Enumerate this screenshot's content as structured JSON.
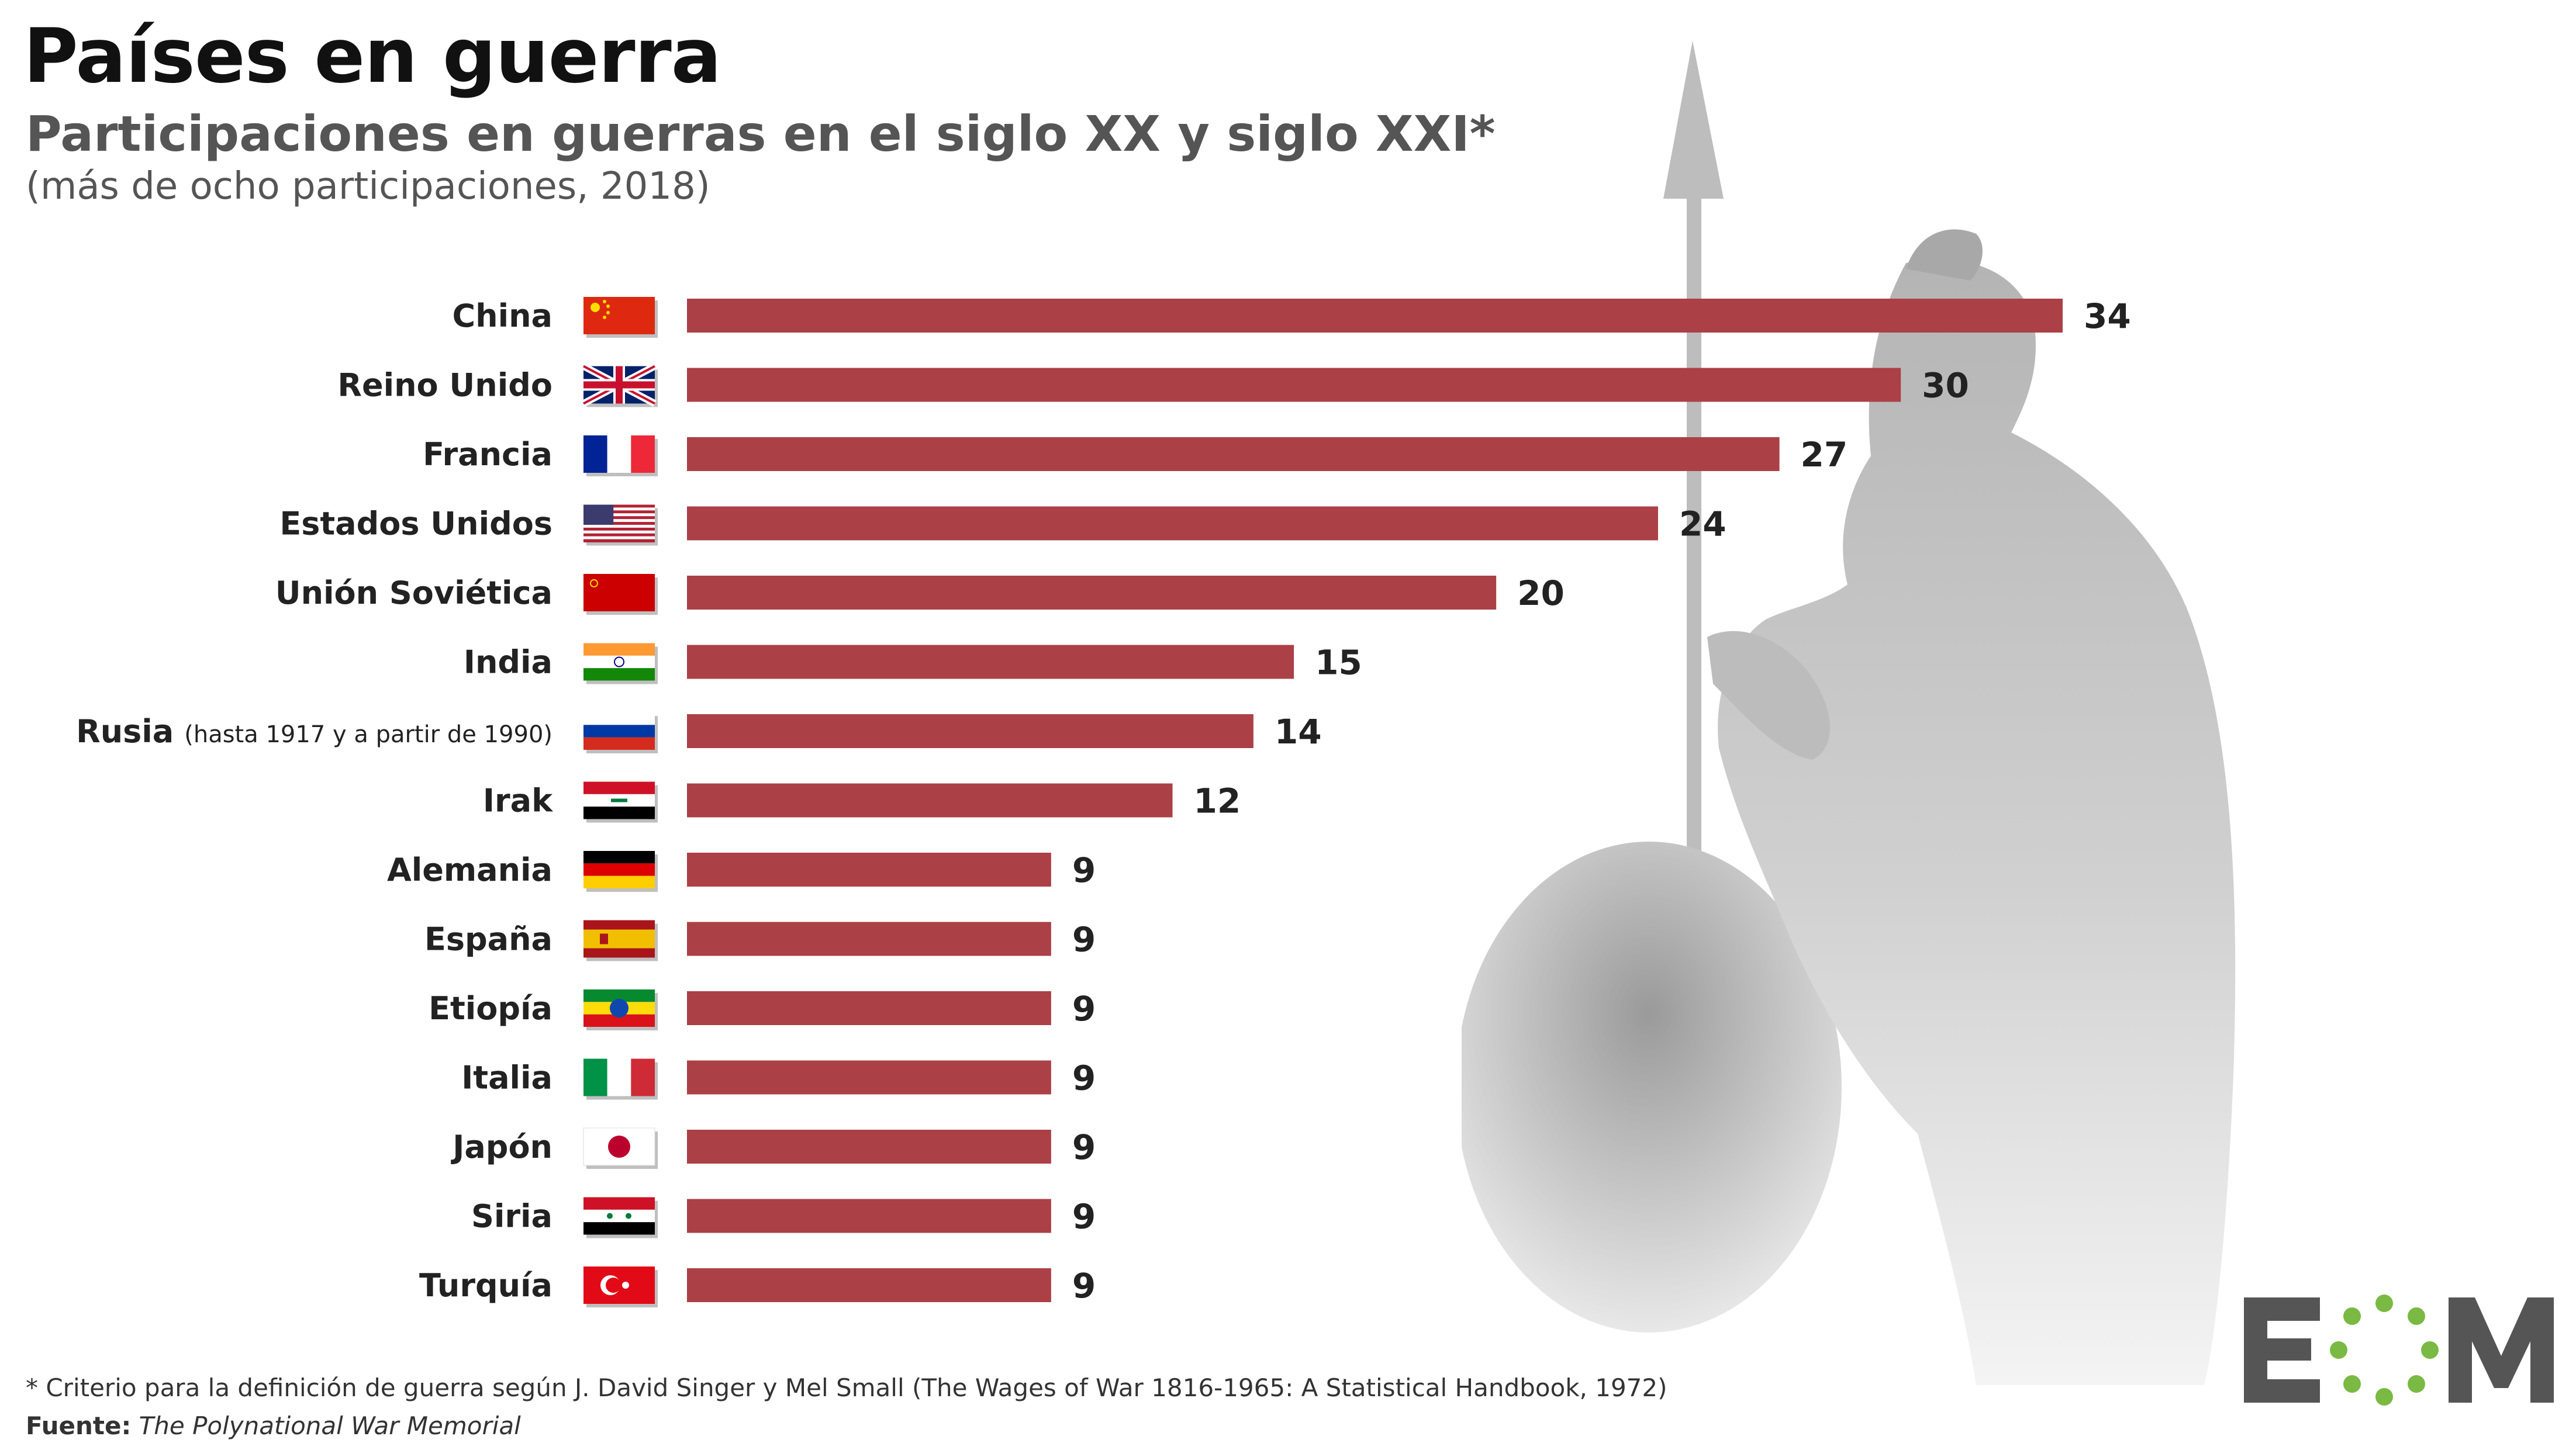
{
  "header": {
    "title": "Países en guerra",
    "subtitle": "Participaciones en guerras en el siglo XX y siglo XXI*",
    "note": "(más de ocho participaciones, 2018)"
  },
  "footer": {
    "footnote": "* Criterio para la definición de guerra según J. David Singer y Mel Small (The Wages of War 1816-1965: A Statistical Handbook, 1972)",
    "source_label": "Fuente:",
    "source_text": "The Polynational War Memorial"
  },
  "logo": {
    "text": "EOM"
  },
  "colors": {
    "bar": "#ab4046",
    "logo_gray": "#555555",
    "logo_green": "#7ab943"
  },
  "chart_data": {
    "type": "bar",
    "orientation": "horizontal",
    "categories": [
      "China",
      "Reino Unido",
      "Francia",
      "Estados Unidos",
      "Unión Soviética",
      "India",
      "Rusia",
      "Irak",
      "Alemania",
      "España",
      "Etiopía",
      "Italia",
      "Japón",
      "Siria",
      "Turquía"
    ],
    "category_notes": {
      "Rusia": "(hasta 1917 y a partir de 1990)"
    },
    "values": [
      34,
      30,
      27,
      24,
      20,
      15,
      14,
      12,
      9,
      9,
      9,
      9,
      9,
      9,
      9
    ],
    "flags": [
      "china-flag",
      "uk-flag",
      "france-flag",
      "usa-flag",
      "ussr-flag",
      "india-flag",
      "russia-flag",
      "iraq-flag",
      "germany-flag",
      "spain-flag",
      "ethiopia-flag",
      "italy-flag",
      "japan-flag",
      "syria-flag",
      "turkey-flag"
    ],
    "xlim": [
      0,
      34
    ],
    "grid": false,
    "legend": "none"
  }
}
